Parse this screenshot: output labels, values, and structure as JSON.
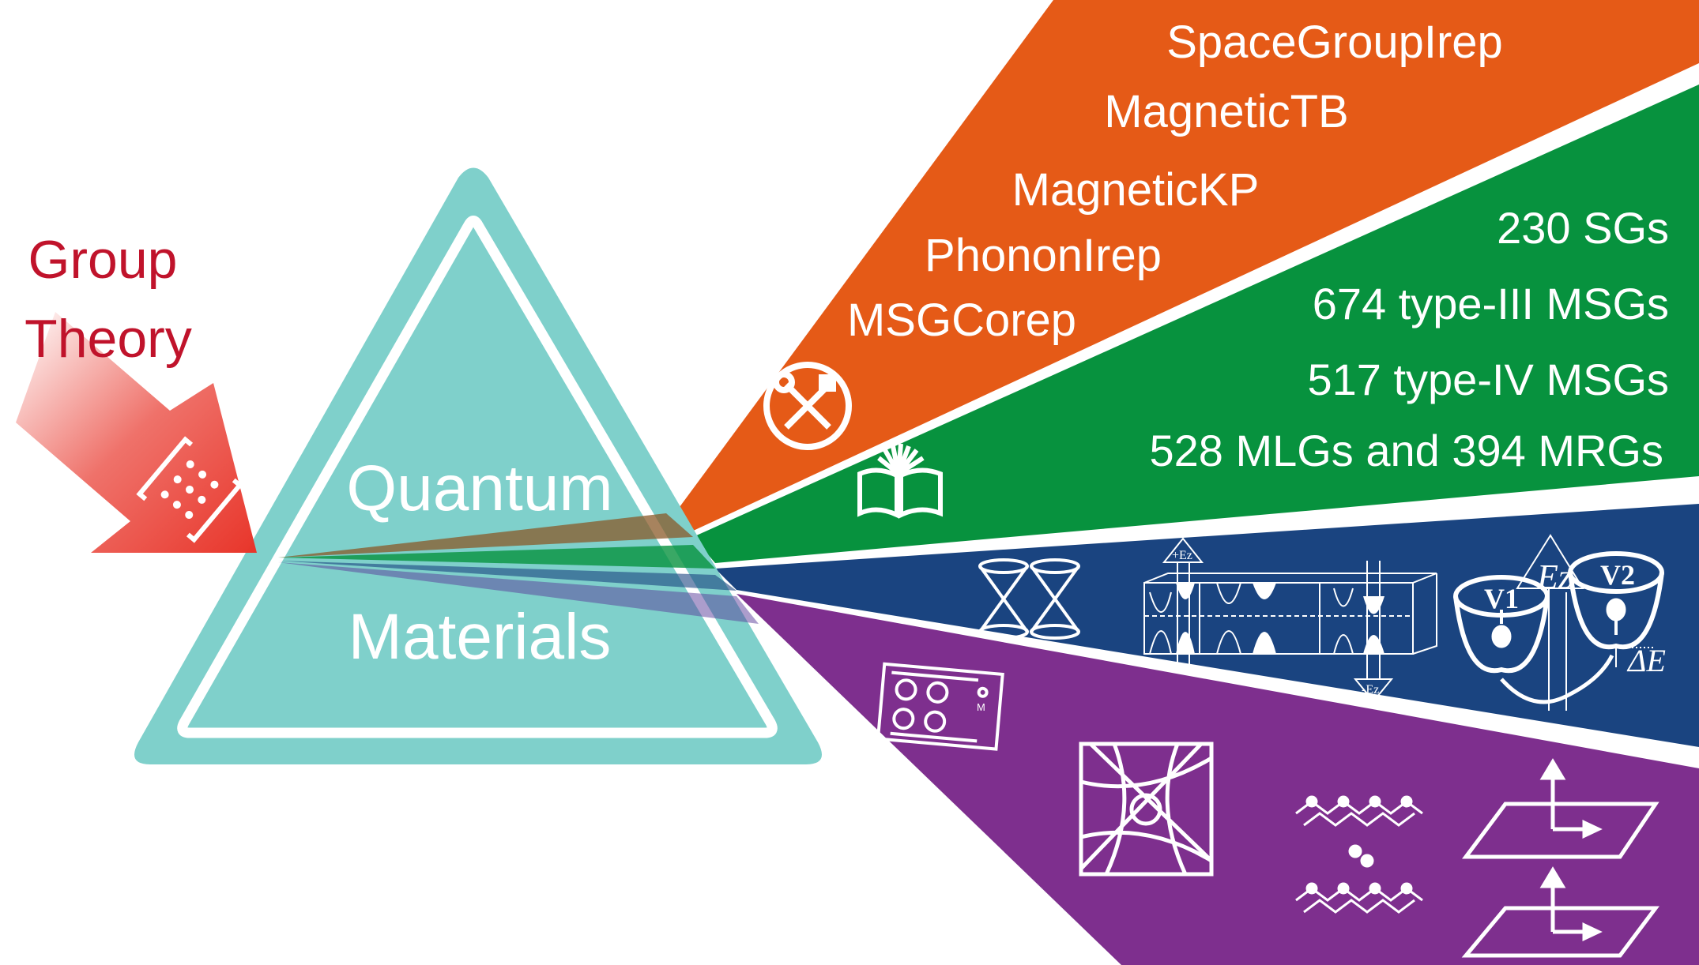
{
  "input": {
    "lines": [
      "Group",
      "Theory"
    ],
    "color": "#c0132b",
    "icon": "bracket-matrix-icon"
  },
  "prism": {
    "lines": [
      "Quantum",
      "Materials"
    ],
    "color": "#7fd0cb"
  },
  "tools": {
    "color": "#e55a17",
    "items": [
      "SpaceGroupIrep",
      "MagneticTB",
      "MagneticKP",
      "PhononIrep",
      "MSGCorep"
    ],
    "icon": "wrench-screwdriver-icon"
  },
  "database": {
    "color": "#07923e",
    "items": [
      "230 SGs",
      "674 type-III MSGs",
      "517 type-IV MSGs",
      "528 MLGs and 394 MRGs"
    ],
    "icon": "open-book-icon"
  },
  "applications_blue": {
    "color": "#1a4480",
    "labels": {
      "plus_ez": "+Ez",
      "minus_ez": "-Ez",
      "ez": "Ez",
      "v1": "V1",
      "v2": "V2",
      "delta_e": "ΔE"
    }
  },
  "applications_purple": {
    "color": "#7e2f8e",
    "labels": {
      "m": "M"
    }
  }
}
